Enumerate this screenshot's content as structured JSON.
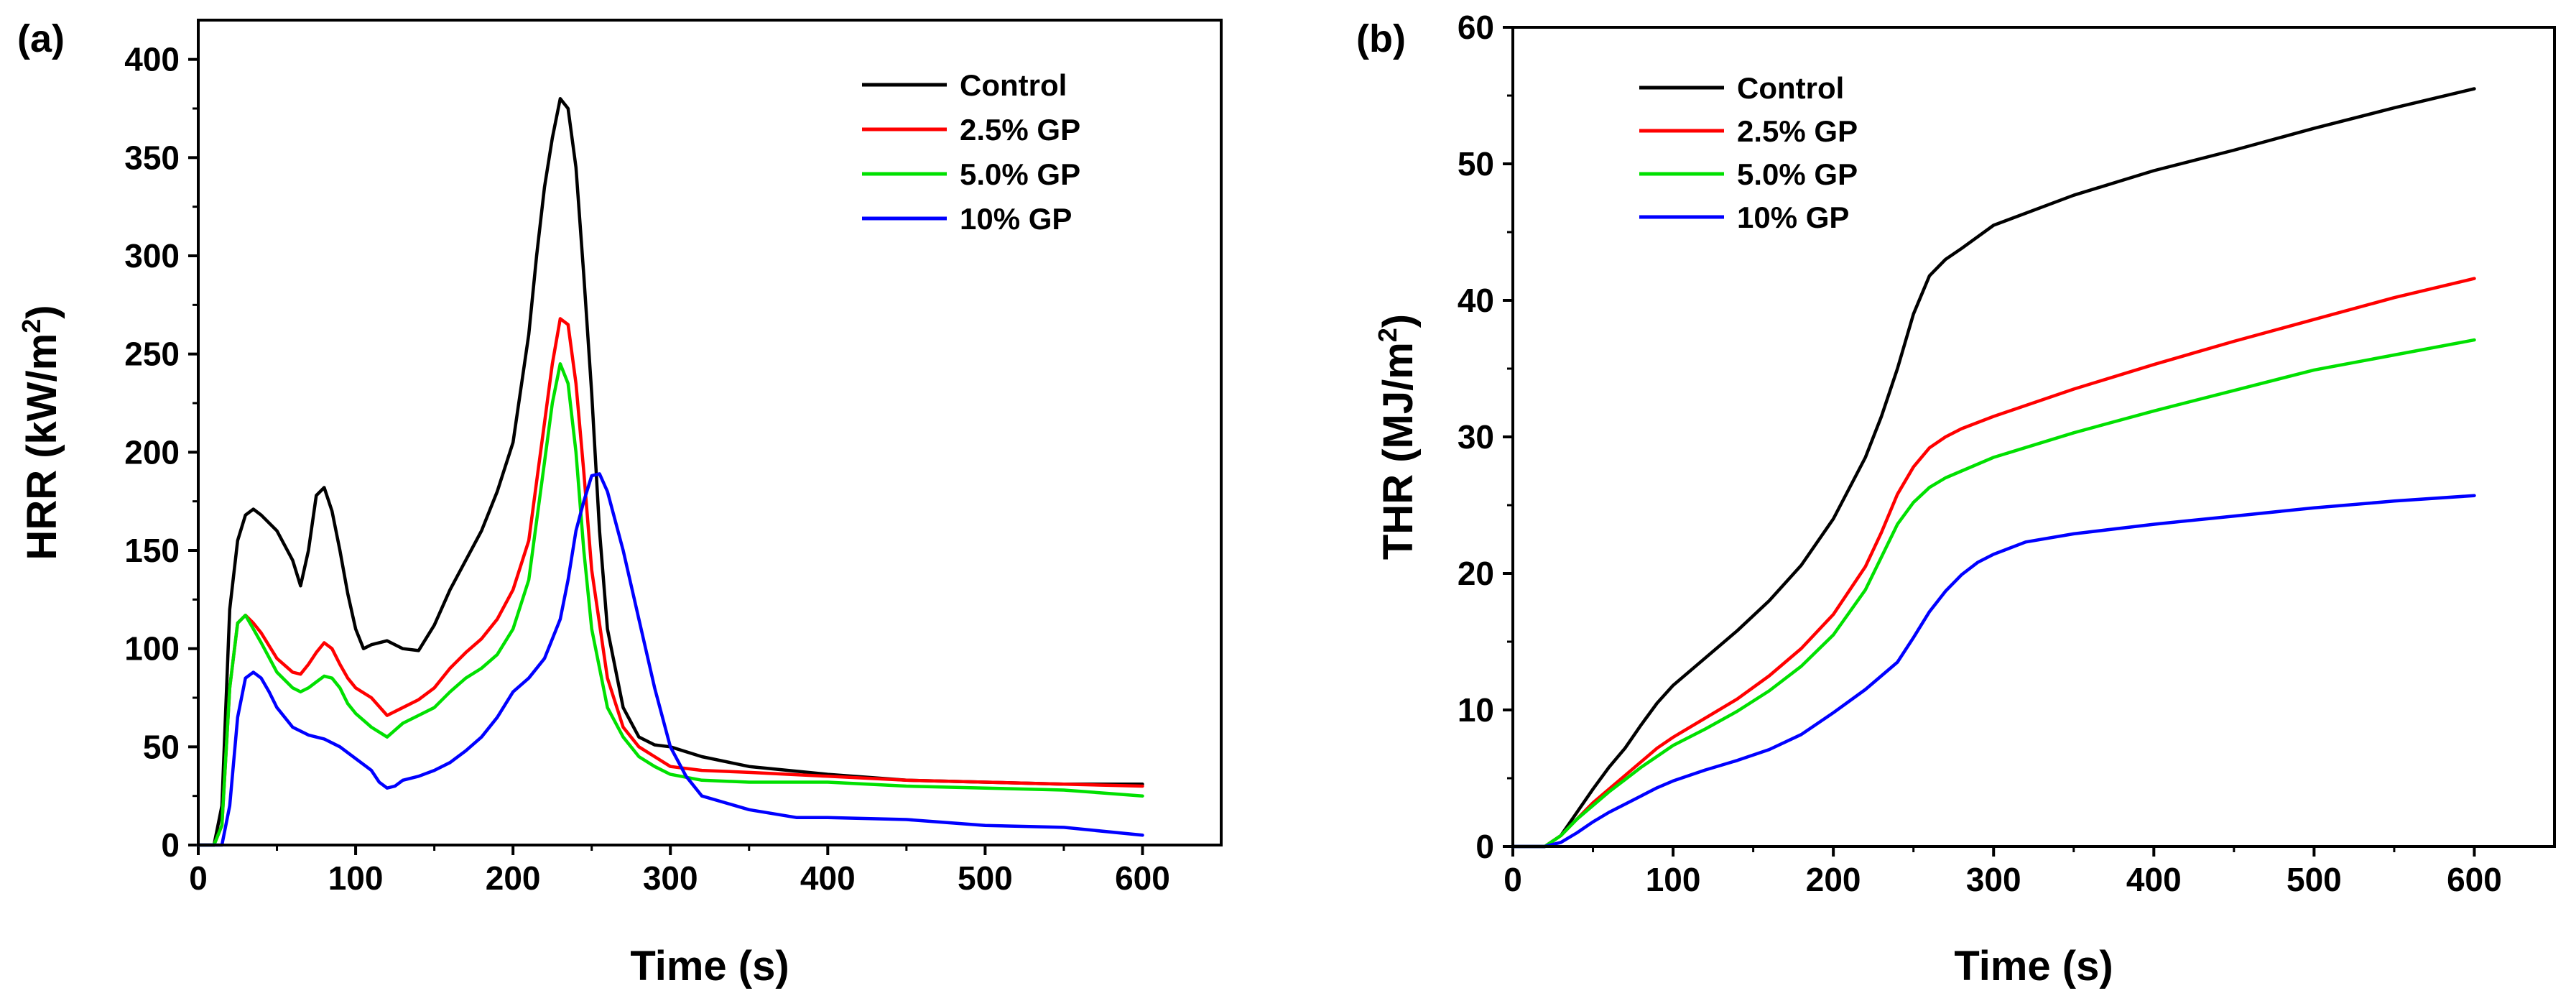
{
  "chart_data": [
    {
      "panel": "(a)",
      "type": "line",
      "xlabel": "Time (s)",
      "ylabel_main": "HRR (kW/m",
      "ylabel_sup": "2",
      "ylabel_close": ")",
      "xlim": [
        0,
        650
      ],
      "ylim": [
        0,
        420
      ],
      "xticks": [
        0,
        100,
        200,
        300,
        400,
        500,
        600
      ],
      "yticks": [
        0,
        50,
        100,
        150,
        200,
        250,
        300,
        350,
        400
      ],
      "legend_position": "top-right",
      "series": [
        {
          "name": "Control",
          "color": "#000000",
          "x": [
            0,
            10,
            15,
            20,
            25,
            30,
            35,
            40,
            50,
            60,
            65,
            70,
            75,
            80,
            85,
            90,
            95,
            100,
            105,
            110,
            120,
            130,
            140,
            150,
            160,
            170,
            180,
            190,
            200,
            210,
            215,
            220,
            225,
            230,
            235,
            240,
            245,
            250,
            255,
            260,
            270,
            280,
            290,
            300,
            320,
            350,
            400,
            450,
            500,
            550,
            600
          ],
          "y": [
            0,
            0,
            20,
            120,
            155,
            168,
            171,
            168,
            160,
            145,
            132,
            150,
            178,
            182,
            170,
            150,
            128,
            110,
            100,
            102,
            104,
            100,
            99,
            112,
            130,
            145,
            160,
            180,
            205,
            260,
            300,
            335,
            360,
            380,
            375,
            345,
            290,
            230,
            160,
            110,
            70,
            55,
            51,
            50,
            45,
            40,
            36,
            33,
            32,
            31,
            31
          ]
        },
        {
          "name": "2.5% GP",
          "color": "#ff0000",
          "x": [
            0,
            10,
            15,
            20,
            25,
            30,
            35,
            40,
            50,
            60,
            65,
            70,
            75,
            80,
            85,
            90,
            95,
            100,
            110,
            120,
            130,
            140,
            150,
            160,
            170,
            180,
            190,
            200,
            210,
            215,
            220,
            225,
            230,
            235,
            240,
            245,
            250,
            260,
            270,
            280,
            290,
            300,
            320,
            350,
            400,
            450,
            500,
            550,
            600
          ],
          "y": [
            0,
            0,
            10,
            80,
            113,
            117,
            113,
            108,
            95,
            88,
            87,
            92,
            98,
            103,
            100,
            92,
            85,
            80,
            75,
            66,
            70,
            74,
            80,
            90,
            98,
            105,
            115,
            130,
            155,
            185,
            215,
            245,
            268,
            265,
            235,
            190,
            140,
            85,
            60,
            50,
            45,
            40,
            38,
            37,
            35,
            33,
            32,
            31,
            30
          ]
        },
        {
          "name": "5.0% GP",
          "color": "#00e000",
          "x": [
            0,
            10,
            15,
            20,
            25,
            30,
            35,
            40,
            50,
            60,
            65,
            70,
            75,
            80,
            85,
            90,
            95,
            100,
            110,
            120,
            130,
            140,
            150,
            160,
            170,
            180,
            190,
            200,
            210,
            215,
            220,
            225,
            230,
            235,
            240,
            245,
            250,
            260,
            270,
            280,
            290,
            300,
            320,
            350,
            400,
            450,
            500,
            550,
            600
          ],
          "y": [
            0,
            0,
            10,
            80,
            113,
            117,
            110,
            103,
            88,
            80,
            78,
            80,
            83,
            86,
            85,
            80,
            72,
            67,
            60,
            55,
            62,
            66,
            70,
            78,
            85,
            90,
            97,
            110,
            135,
            165,
            195,
            225,
            245,
            235,
            200,
            150,
            110,
            70,
            55,
            45,
            40,
            36,
            33,
            32,
            32,
            30,
            29,
            28,
            25
          ]
        },
        {
          "name": "10% GP",
          "color": "#0000ff",
          "x": [
            0,
            15,
            20,
            25,
            30,
            35,
            40,
            45,
            50,
            60,
            70,
            80,
            90,
            100,
            110,
            115,
            120,
            125,
            130,
            140,
            150,
            160,
            170,
            180,
            190,
            200,
            210,
            220,
            230,
            235,
            240,
            245,
            250,
            255,
            260,
            270,
            280,
            290,
            300,
            310,
            320,
            350,
            380,
            400,
            450,
            500,
            550,
            600
          ],
          "y": [
            0,
            0,
            20,
            65,
            85,
            88,
            85,
            78,
            70,
            60,
            56,
            54,
            50,
            44,
            38,
            32,
            29,
            30,
            33,
            35,
            38,
            42,
            48,
            55,
            65,
            78,
            85,
            95,
            115,
            135,
            160,
            175,
            188,
            189,
            180,
            150,
            115,
            80,
            50,
            35,
            25,
            18,
            14,
            14,
            13,
            10,
            9,
            5
          ]
        }
      ]
    },
    {
      "panel": "(b)",
      "type": "line",
      "xlabel": "Time (s)",
      "ylabel_main": "THR (MJ/m",
      "ylabel_sup": "2",
      "ylabel_close": ")",
      "xlim": [
        0,
        650
      ],
      "ylim": [
        0,
        60
      ],
      "xticks": [
        0,
        100,
        200,
        300,
        400,
        500,
        600
      ],
      "yticks": [
        0,
        10,
        20,
        30,
        40,
        50,
        60
      ],
      "legend_position": "top-left",
      "series": [
        {
          "name": "Control",
          "color": "#000000",
          "x": [
            0,
            20,
            30,
            40,
            50,
            60,
            70,
            80,
            90,
            100,
            120,
            140,
            160,
            180,
            200,
            220,
            230,
            240,
            250,
            260,
            270,
            280,
            300,
            350,
            400,
            450,
            500,
            550,
            600
          ],
          "y": [
            0,
            0,
            0.8,
            2.5,
            4.2,
            5.8,
            7.2,
            8.9,
            10.5,
            11.8,
            13.8,
            15.8,
            18.0,
            20.6,
            24.0,
            28.5,
            31.5,
            35.0,
            39.0,
            41.8,
            43.0,
            43.8,
            45.5,
            47.7,
            49.5,
            51.0,
            52.6,
            54.1,
            55.5
          ]
        },
        {
          "name": "2.5% GP",
          "color": "#ff0000",
          "x": [
            0,
            20,
            30,
            40,
            50,
            60,
            70,
            80,
            90,
            100,
            120,
            140,
            160,
            180,
            200,
            220,
            230,
            240,
            250,
            260,
            270,
            280,
            300,
            350,
            400,
            450,
            500,
            550,
            600
          ],
          "y": [
            0,
            0,
            0.8,
            2.0,
            3.2,
            4.2,
            5.2,
            6.2,
            7.2,
            8.0,
            9.4,
            10.8,
            12.5,
            14.5,
            17.0,
            20.5,
            23.0,
            25.8,
            27.8,
            29.2,
            30.0,
            30.6,
            31.5,
            33.5,
            35.3,
            37.0,
            38.6,
            40.2,
            41.6
          ]
        },
        {
          "name": "5.0% GP",
          "color": "#00e000",
          "x": [
            0,
            20,
            30,
            40,
            50,
            60,
            70,
            80,
            90,
            100,
            120,
            140,
            160,
            180,
            200,
            220,
            230,
            240,
            250,
            260,
            270,
            280,
            300,
            350,
            400,
            450,
            500,
            550,
            600
          ],
          "y": [
            0,
            0,
            0.8,
            2.0,
            3.0,
            4.0,
            4.9,
            5.8,
            6.6,
            7.4,
            8.6,
            9.9,
            11.4,
            13.2,
            15.5,
            18.8,
            21.2,
            23.6,
            25.2,
            26.3,
            27.0,
            27.5,
            28.5,
            30.3,
            31.9,
            33.4,
            34.9,
            36.0,
            37.1
          ]
        },
        {
          "name": "10% GP",
          "color": "#0000ff",
          "x": [
            0,
            20,
            30,
            40,
            50,
            60,
            70,
            80,
            90,
            100,
            120,
            140,
            160,
            180,
            200,
            220,
            240,
            250,
            260,
            270,
            280,
            290,
            300,
            320,
            350,
            400,
            450,
            500,
            550,
            600
          ],
          "y": [
            0,
            0,
            0.3,
            1.0,
            1.8,
            2.5,
            3.1,
            3.7,
            4.3,
            4.8,
            5.6,
            6.3,
            7.1,
            8.2,
            9.8,
            11.5,
            13.5,
            15.3,
            17.2,
            18.7,
            19.9,
            20.8,
            21.4,
            22.3,
            22.9,
            23.6,
            24.2,
            24.8,
            25.3,
            25.7
          ]
        }
      ]
    }
  ]
}
